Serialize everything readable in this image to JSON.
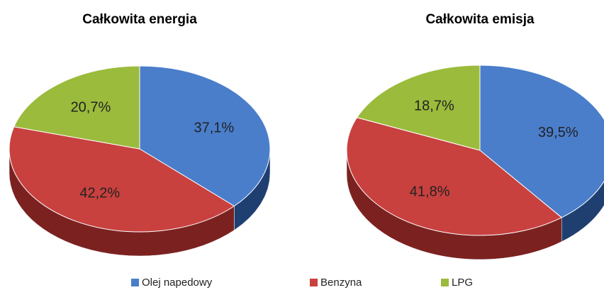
{
  "legend": {
    "names": [
      "Olej napedowy",
      "Benzyna",
      "LPG"
    ],
    "colors": [
      "#4a7ecb",
      "#c8413f",
      "#9bbb3c"
    ],
    "side_colors": [
      "#1f3f70",
      "#7b2221",
      "#5e7a22"
    ]
  },
  "chart_data": [
    {
      "type": "pie",
      "title": "Całkowita energia",
      "values": [
        37.1,
        42.2,
        20.7
      ],
      "value_labels": [
        "37,1%",
        "42,2%",
        "20,7%"
      ]
    },
    {
      "type": "pie",
      "title": "Całkowita emisja",
      "values": [
        39.5,
        41.8,
        18.7
      ],
      "value_labels": [
        "39,5%",
        "41,8%",
        "18,7%"
      ]
    }
  ]
}
